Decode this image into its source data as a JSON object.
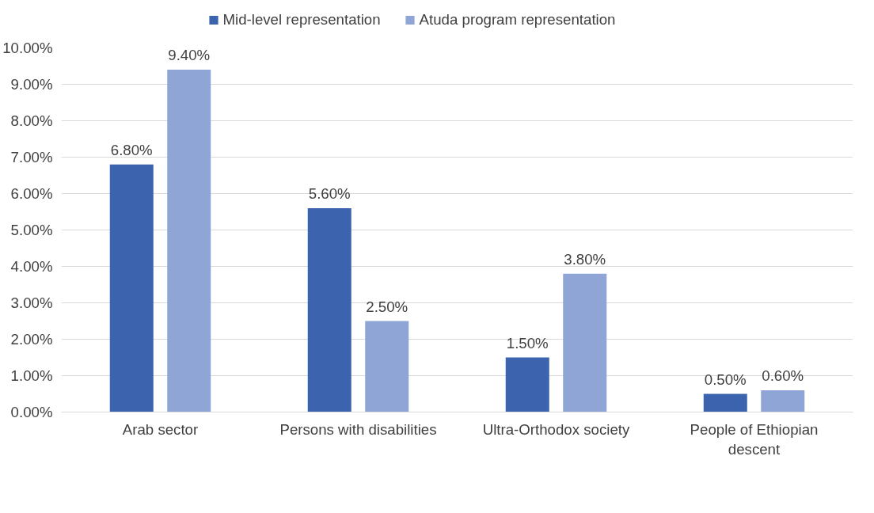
{
  "chart_data": {
    "type": "bar",
    "categories": [
      "Arab sector",
      "Persons with disabilities",
      "Ultra-Orthodox society",
      "People of Ethiopian descent"
    ],
    "series": [
      {
        "name": "Mid-level representation",
        "color": "#3c64ae",
        "values": [
          6.8,
          5.6,
          1.5,
          0.5
        ],
        "value_labels": [
          "6.80%",
          "5.60%",
          "1.50%",
          "0.50%"
        ]
      },
      {
        "name": "Atuda program representation",
        "color": "#8fa5d6",
        "values": [
          9.4,
          2.5,
          3.8,
          0.6
        ],
        "value_labels": [
          "9.40%",
          "2.50%",
          "3.80%",
          "0.60%"
        ]
      }
    ],
    "ylim": [
      0,
      10
    ],
    "yticks": [
      {
        "value": 0,
        "label": "0.00%"
      },
      {
        "value": 1,
        "label": "1.00%"
      },
      {
        "value": 2,
        "label": "2.00%"
      },
      {
        "value": 3,
        "label": "3.00%"
      },
      {
        "value": 4,
        "label": "4.00%"
      },
      {
        "value": 5,
        "label": "5.00%"
      },
      {
        "value": 6,
        "label": "6.00%"
      },
      {
        "value": 7,
        "label": "7.00%"
      },
      {
        "value": 8,
        "label": "8.00%"
      },
      {
        "value": 9,
        "label": "9.00%"
      },
      {
        "value": 10,
        "label": "10.00%"
      }
    ],
    "grid": "y",
    "legend": "top"
  }
}
